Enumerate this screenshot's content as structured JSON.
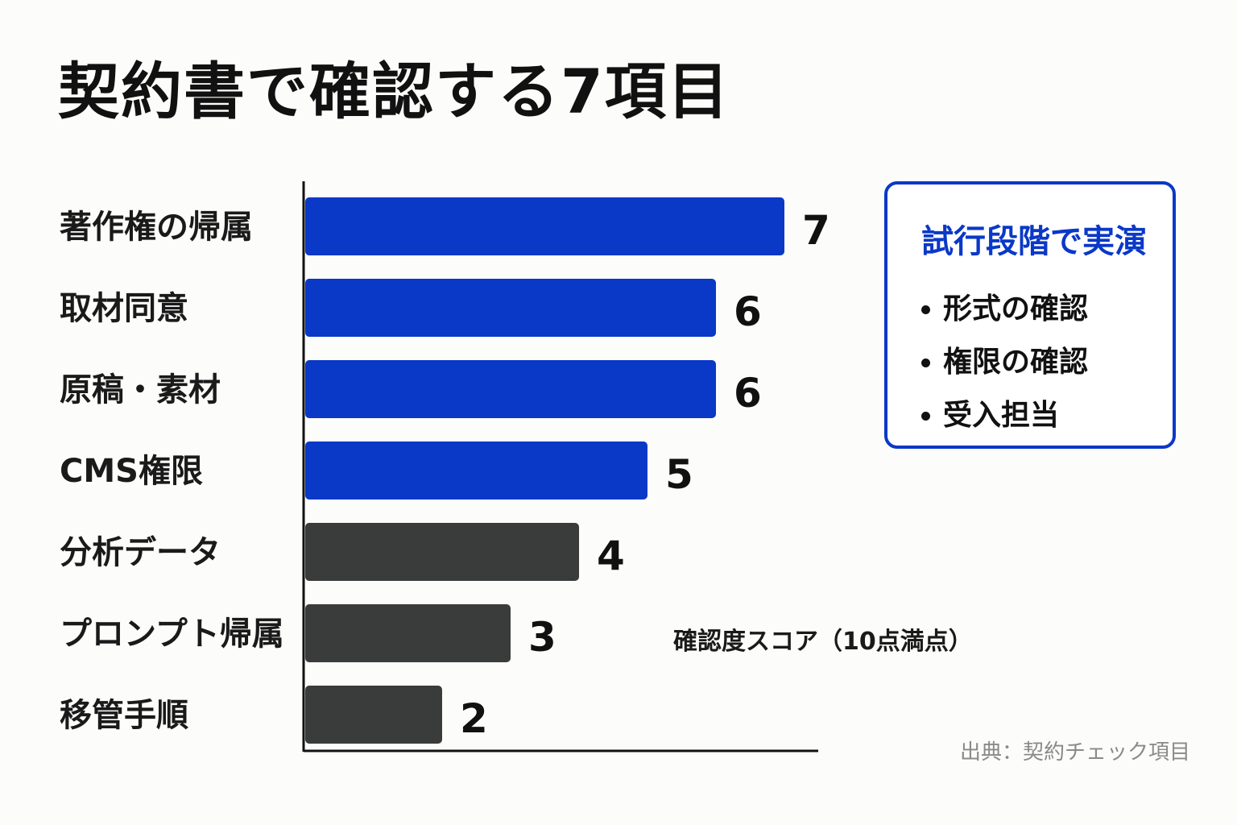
{
  "title": "契約書で確認する7項目",
  "callout": {
    "title": "試行段階で実演",
    "items": [
      "形式の確認",
      "権限の確認",
      "受入担当"
    ]
  },
  "axis_note": "確認度スコア（10点満点）",
  "source": "出典：契約チェック項目",
  "colors": {
    "primary": "#0a38c7",
    "secondary": "#3a3c3b",
    "accent_border": "#0a38c7"
  },
  "chart_data": {
    "type": "bar",
    "orientation": "horizontal",
    "categories": [
      "著作権の帰属",
      "取材同意",
      "原稿・素材",
      "CMS権限",
      "分析データ",
      "プロンプト帰属",
      "移管手順"
    ],
    "values": [
      7,
      6,
      6,
      5,
      4,
      3,
      2
    ],
    "bar_colors": [
      "#0a38c7",
      "#0a38c7",
      "#0a38c7",
      "#0a38c7",
      "#3a3c3b",
      "#3a3c3b",
      "#3a3c3b"
    ],
    "xlabel": "確認度スコア（10点満点）",
    "xlim": [
      0,
      8.5
    ],
    "grid": false,
    "legend": "none"
  }
}
